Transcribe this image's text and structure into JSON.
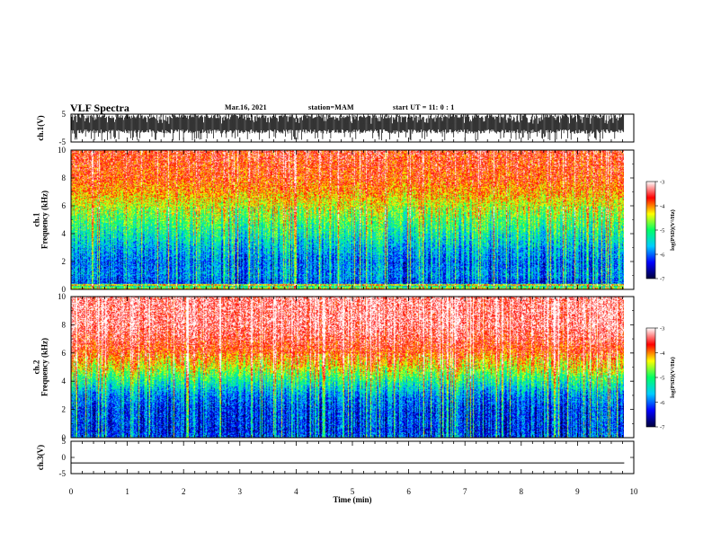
{
  "header": {
    "title": "VLF Spectra",
    "date": "Mar.16, 2021",
    "station": "station=MAM",
    "start": "start  UT =   11: 0  : 1"
  },
  "chart_data": [
    {
      "type": "line",
      "panel": "ch1-waveform",
      "ylabel": "ch.1(V)",
      "ylim": [
        -5,
        5
      ],
      "yticks": [
        "5",
        "-5"
      ],
      "xlim": [
        0,
        10
      ],
      "x_end": 9.83,
      "description_values": {
        "typical_min": -2,
        "typical_max": 5
      }
    },
    {
      "type": "heatmap",
      "panel": "ch1-spectrogram",
      "ylabel": "ch.1\nFrequency (kHz)",
      "ylim": [
        0,
        10
      ],
      "yticks": [
        "0",
        "2",
        "4",
        "6",
        "8",
        "10"
      ],
      "xlim": [
        0,
        10
      ],
      "x_end": 9.83,
      "colorbar": {
        "label": "log(PSD)(V²/Hz)",
        "range": [
          -7,
          -3
        ],
        "ticks": [
          "-3",
          "-4",
          "-5",
          "-6",
          "-7"
        ]
      },
      "profile": {
        "freq_khz": [
          0,
          0.5,
          1,
          2,
          3,
          4,
          5,
          6,
          7,
          8,
          9,
          10
        ],
        "log_psd": [
          -4.2,
          -6.2,
          -5.9,
          -6.0,
          -5.7,
          -5.3,
          -4.9,
          -4.5,
          -4.1,
          -3.8,
          -3.7,
          -3.6
        ]
      }
    },
    {
      "type": "heatmap",
      "panel": "ch2-spectrogram",
      "ylabel": "ch.2\nFrequency (kHz)",
      "ylim": [
        0,
        10
      ],
      "yticks": [
        "0",
        "2",
        "4",
        "6",
        "8",
        "10"
      ],
      "xlim": [
        0,
        10
      ],
      "x_end": 9.83,
      "colorbar": {
        "label": "log(PSD)(V²/Hz)",
        "range": [
          -7,
          -3
        ],
        "ticks": [
          "-3",
          "-4",
          "-5",
          "-6",
          "-7"
        ]
      },
      "profile": {
        "freq_khz": [
          0,
          0.5,
          1,
          2,
          3,
          4,
          5,
          6,
          7,
          8,
          9,
          10
        ],
        "log_psd": [
          -6.0,
          -6.3,
          -6.2,
          -6.2,
          -5.9,
          -5.2,
          -4.4,
          -3.8,
          -3.5,
          -3.3,
          -3.3,
          -3.3
        ]
      }
    },
    {
      "type": "line",
      "panel": "ch3-waveform",
      "ylabel": "ch.3(V)",
      "ylim": [
        -5,
        5
      ],
      "yticks": [
        "5",
        "0",
        "-5"
      ],
      "xlim": [
        0,
        10
      ],
      "x": [
        0,
        9.83
      ],
      "y": [
        -1.7,
        -1.7
      ]
    }
  ],
  "xaxis": {
    "label": "Time (min)",
    "ticks": [
      "0",
      "1",
      "2",
      "3",
      "4",
      "5",
      "6",
      "7",
      "8",
      "9",
      "10"
    ]
  },
  "colors": {
    "scale": [
      "#00003a",
      "#0000ff",
      "#00ccff",
      "#00ff66",
      "#ffff00",
      "#ff0000",
      "#ffffff"
    ]
  }
}
